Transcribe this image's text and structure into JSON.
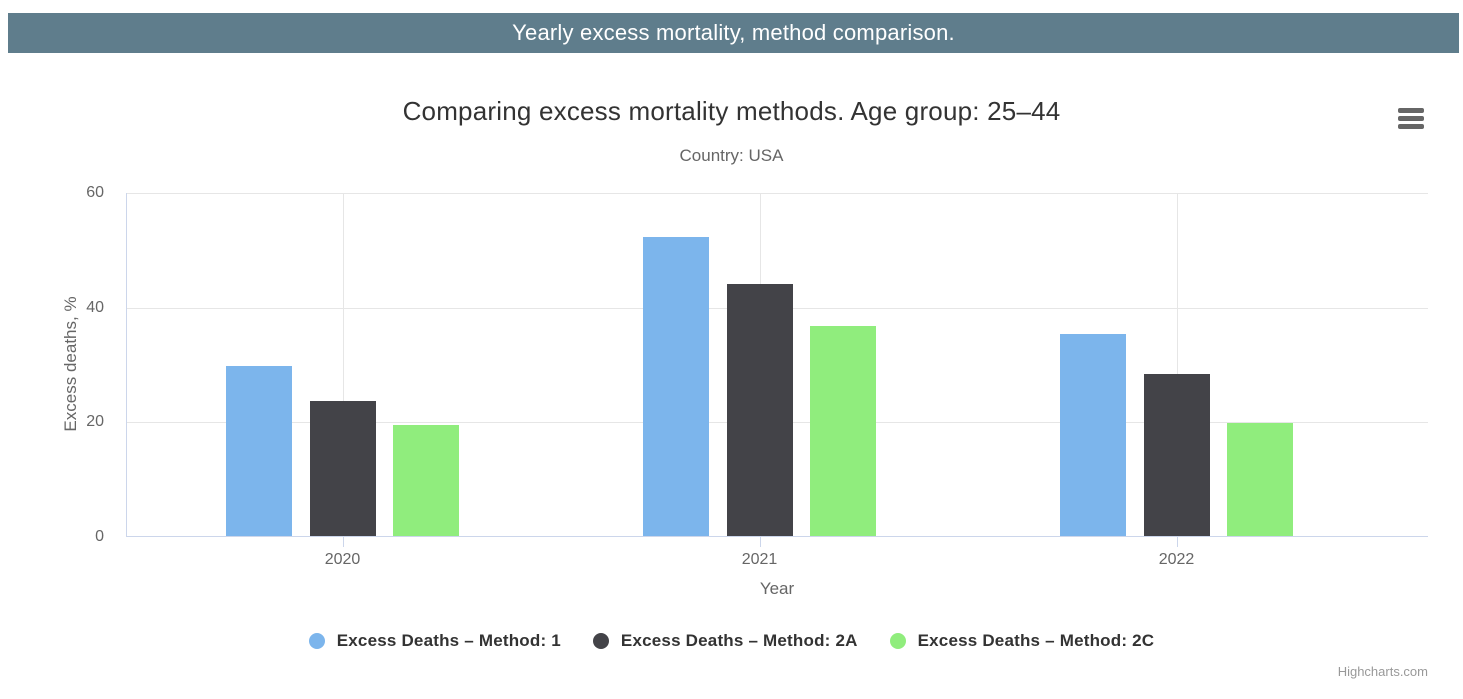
{
  "banner": {
    "text": "Yearly excess mortality, method comparison."
  },
  "chart": {
    "title": "Comparing excess mortality methods. Age group: 25–44",
    "subtitle": "Country: USA",
    "credits": "Highcharts.com",
    "context_menu_icon": "hamburger-icon"
  },
  "chart_data": {
    "type": "bar",
    "categories": [
      "2020",
      "2021",
      "2022"
    ],
    "series": [
      {
        "name": "Excess Deaths – Method: 1",
        "color": "#7cb5ec",
        "values": [
          29.7,
          52.2,
          35.2
        ]
      },
      {
        "name": "Excess Deaths – Method: 2A",
        "color": "#434348",
        "values": [
          23.5,
          43.9,
          28.3
        ]
      },
      {
        "name": "Excess Deaths – Method: 2C",
        "color": "#90ed7d",
        "values": [
          19.4,
          36.7,
          19.7
        ]
      }
    ],
    "title": "Comparing excess mortality methods. Age group: 25–44",
    "subtitle": "Country: USA",
    "xlabel": "Year",
    "ylabel": "Excess deaths, %",
    "ylim": [
      0,
      60
    ],
    "yticks": [
      0,
      20,
      40,
      60
    ],
    "grid": true,
    "legend_position": "bottom"
  },
  "colors": {
    "banner_bg": "#5f7d8c",
    "banner_text": "#ffffff",
    "grid_line": "#e6e6e6",
    "axis_line": "#ccd6eb",
    "title_text": "#333333",
    "muted_text": "#666666",
    "credits_text": "#999999"
  }
}
